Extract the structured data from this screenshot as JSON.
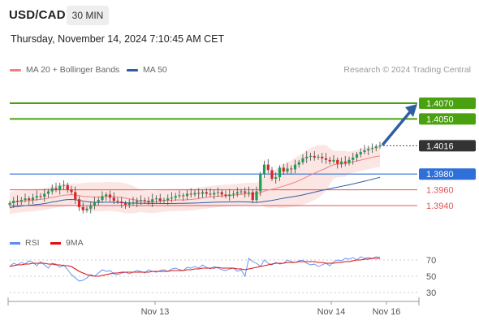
{
  "header": {
    "symbol": "USD/CAD",
    "timeframe": "30 MIN",
    "datetime": "Thursday, November 14, 2024 7:10:45 AM CET"
  },
  "legend": {
    "ma20_label": "MA 20 + Bollinger Bands",
    "ma50_label": "MA 50",
    "credit": "Research © 2024 Trading Central"
  },
  "rsi_legend": {
    "rsi_label": "RSI",
    "ma9_label": "9MA"
  },
  "colors": {
    "ma20": "#f08080",
    "ma50": "#2e5da6",
    "band_fill": "#fbe3e1",
    "bull_candle": "#1f9d55",
    "bear_candle": "#d62728",
    "resistance": "#4aa10f",
    "support": "#e05555",
    "pivot": "#2e6fd8",
    "arrow": "#2f5fa0",
    "rsi": "#5b8def",
    "rsi_ma": "#e01010"
  },
  "chart_data": [
    {
      "type": "candlestick",
      "title": "USD/CAD 30 MIN",
      "x_ticks": [
        "Nov 13",
        "Nov 14",
        "Nov 16"
      ],
      "ylim": [
        1.391,
        1.41
      ],
      "levels": [
        {
          "value": 1.407,
          "label": "1.4070",
          "kind": "resistance"
        },
        {
          "value": 1.405,
          "label": "1.4050",
          "kind": "resistance"
        },
        {
          "value": 1.4016,
          "label": "1.4016",
          "kind": "last"
        },
        {
          "value": 1.398,
          "label": "1.3980",
          "kind": "pivot"
        },
        {
          "value": 1.396,
          "label": "1.3960",
          "kind": "support"
        },
        {
          "value": 1.394,
          "label": "1.3940",
          "kind": "support"
        }
      ],
      "closes": [
        1.3943,
        1.3946,
        1.3945,
        1.3947,
        1.3949,
        1.3947,
        1.395,
        1.3952,
        1.3951,
        1.3955,
        1.3958,
        1.3962,
        1.396,
        1.3965,
        1.3966,
        1.396,
        1.3957,
        1.3948,
        1.3938,
        1.3934,
        1.3936,
        1.394,
        1.3944,
        1.3947,
        1.3952,
        1.3954,
        1.395,
        1.3946,
        1.3945,
        1.3943,
        1.3941,
        1.3943,
        1.3944,
        1.3946,
        1.3947,
        1.3946,
        1.3944,
        1.3948,
        1.3949,
        1.3946,
        1.3947,
        1.3949,
        1.395,
        1.3952,
        1.3953,
        1.3952,
        1.3955,
        1.3954,
        1.3956,
        1.3955,
        1.3957,
        1.3955,
        1.3954,
        1.3956,
        1.3957,
        1.3954,
        1.3952,
        1.3954,
        1.3955,
        1.3957,
        1.3958,
        1.3956,
        1.3957,
        1.3947,
        1.3958,
        1.398,
        1.3992,
        1.3985,
        1.3974,
        1.3976,
        1.3988,
        1.3983,
        1.3987,
        1.3986,
        1.3992,
        1.3995,
        1.4,
        1.4002,
        1.4003,
        1.4001,
        1.4002,
        1.4,
        1.3998,
        1.3996,
        1.3998,
        1.3993,
        1.3996,
        1.3994,
        1.3998,
        1.4001,
        1.4005,
        1.4008,
        1.401,
        1.4012,
        1.4013,
        1.4015,
        1.4016
      ],
      "arrow_target": 1.407,
      "moving_averages": [
        "MA 20 + Bollinger Bands",
        "MA 50"
      ]
    },
    {
      "type": "line",
      "title": "RSI",
      "series": [
        {
          "name": "RSI",
          "values": [
            62,
            66,
            64,
            67,
            65,
            69,
            67,
            63,
            68,
            64,
            60,
            66,
            65,
            61,
            64,
            58,
            52,
            48,
            44,
            45,
            48,
            52,
            50,
            54,
            58,
            56,
            57,
            53,
            52,
            54,
            55,
            53,
            55,
            57,
            56,
            54,
            58,
            56,
            55,
            57,
            58,
            56,
            59,
            60,
            58,
            57,
            61,
            60,
            62,
            60,
            64,
            61,
            59,
            62,
            60,
            58,
            57,
            59,
            60,
            56,
            58,
            50,
            72,
            68,
            66,
            62,
            70,
            66,
            64,
            67,
            65,
            66,
            70,
            68,
            67,
            69,
            70,
            66,
            64,
            65,
            62,
            64,
            66,
            63,
            68,
            70,
            69,
            72,
            71,
            73,
            70,
            74,
            72,
            73,
            72,
            74,
            73
          ]
        },
        {
          "name": "9MA",
          "values": [
            62,
            63,
            64,
            64,
            65,
            65,
            66,
            66,
            66,
            66,
            65,
            65,
            64,
            64,
            63,
            63,
            62,
            59,
            56,
            54,
            52,
            51,
            50,
            50,
            51,
            52,
            53,
            54,
            54,
            55,
            55,
            55,
            55,
            55,
            55,
            55,
            55,
            56,
            56,
            56,
            56,
            56,
            57,
            57,
            57,
            57,
            58,
            58,
            59,
            59,
            60,
            60,
            60,
            60,
            61,
            60,
            60,
            60,
            60,
            59,
            59,
            58,
            59,
            60,
            61,
            62,
            63,
            64,
            65,
            66,
            66,
            66,
            67,
            67,
            67,
            68,
            68,
            68,
            68,
            68,
            67,
            67,
            66,
            66,
            66,
            67,
            67,
            68,
            68,
            69,
            70,
            70,
            71,
            71,
            72,
            72,
            72
          ]
        }
      ],
      "y_ticks": [
        70,
        50,
        30
      ],
      "ylim": [
        20,
        80
      ]
    }
  ]
}
